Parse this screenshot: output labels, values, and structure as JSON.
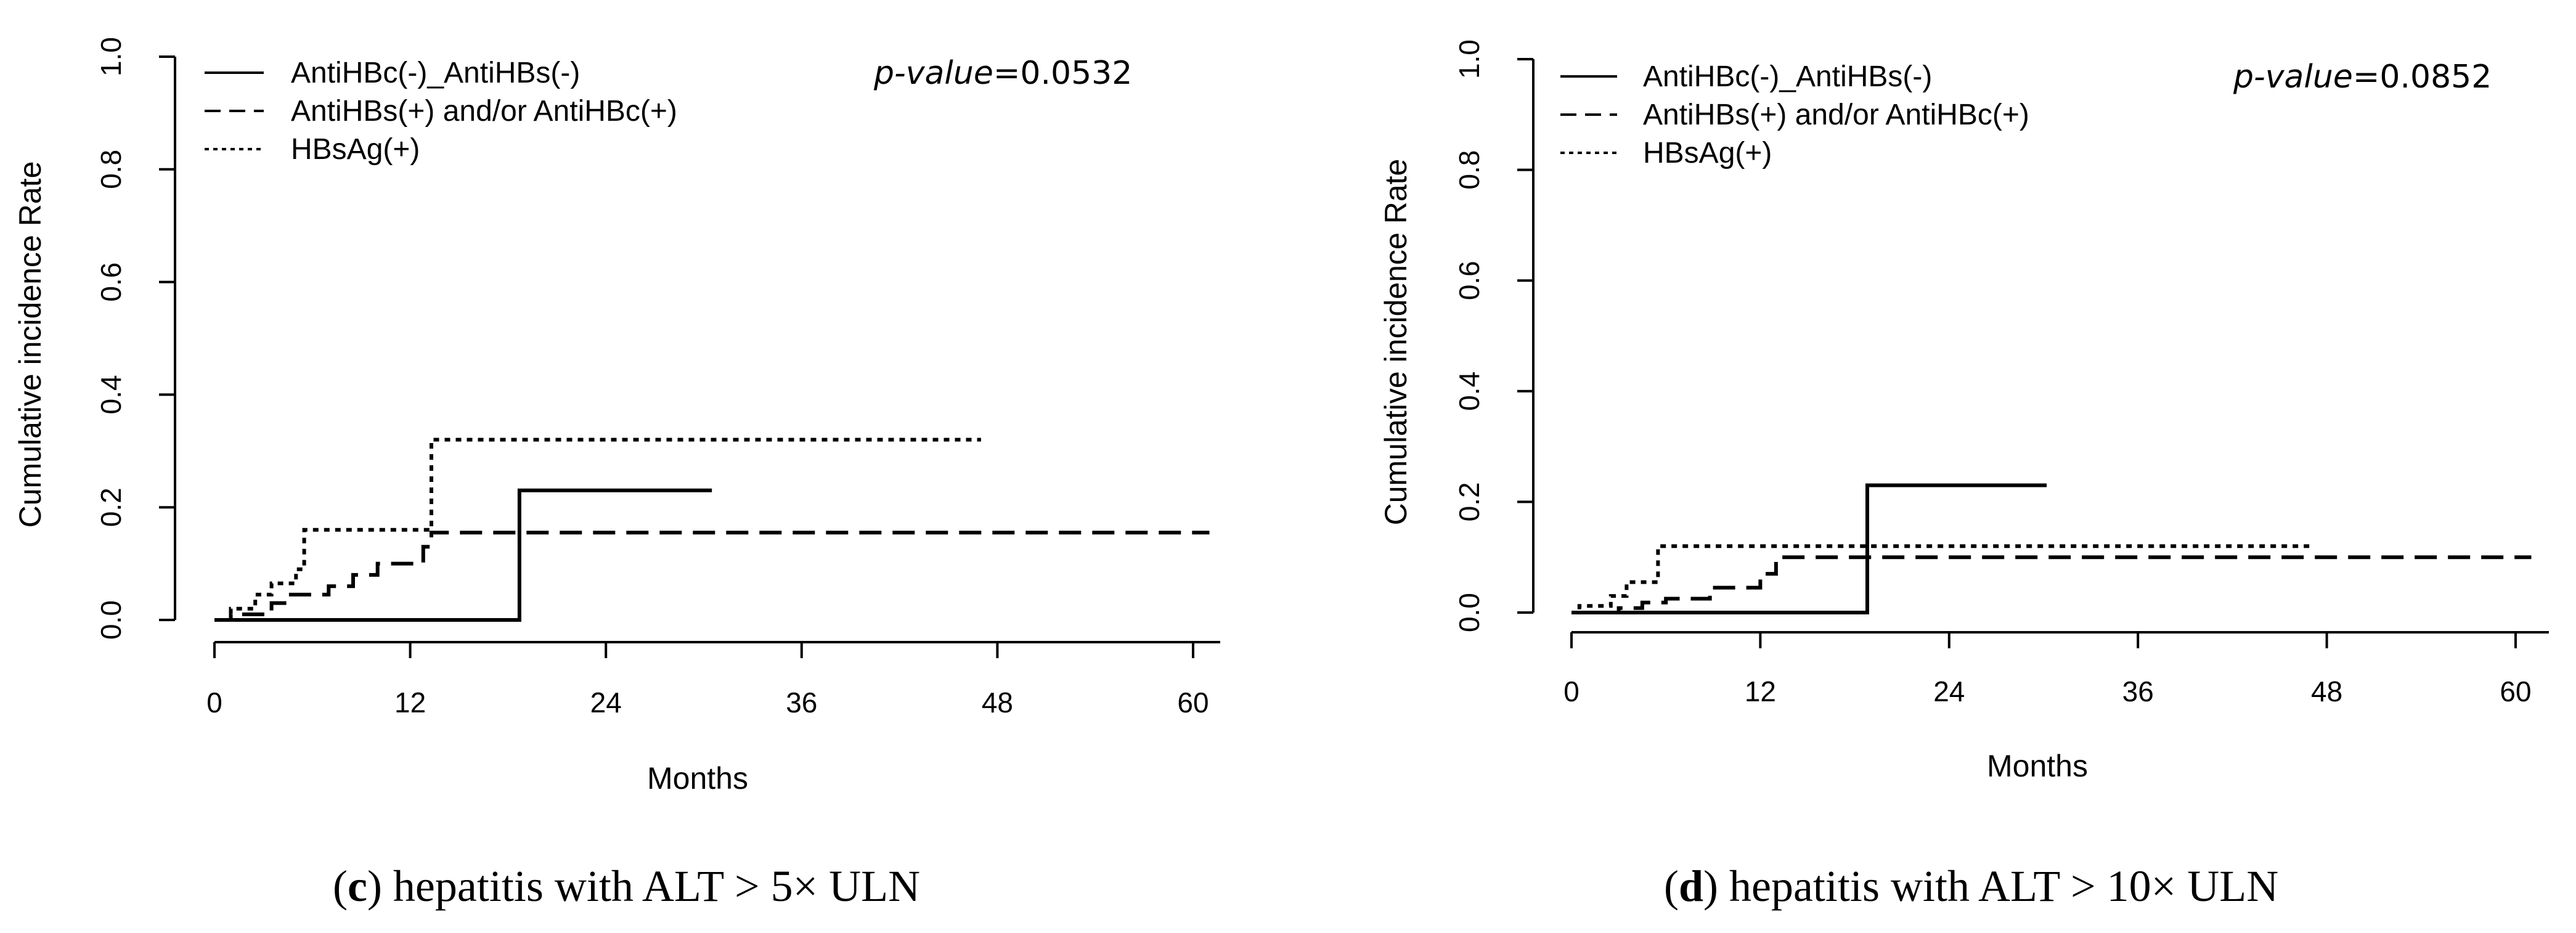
{
  "chart_data": [
    {
      "type": "line",
      "step": true,
      "title": "",
      "xlabel": "Months",
      "ylabel": "Cumulative incidence Rate",
      "xlim": [
        0,
        60
      ],
      "ylim": [
        0,
        1.0
      ],
      "xticks": [
        "0",
        "12",
        "24",
        "36",
        "48",
        "60"
      ],
      "yticks": [
        "0.0",
        "0.2",
        "0.4",
        "0.6",
        "0.8",
        "1.0"
      ],
      "grid": false,
      "legend": "top-left",
      "annotation": {
        "label": "p-value",
        "value": "=0.0532"
      },
      "caption": {
        "letter": "c",
        "text": ") hepatitis with ALT > 5× ULN"
      },
      "series": [
        {
          "name": "AntiHBc(-)_AntiHBs(-)",
          "style": "solid",
          "points": [
            [
              0,
              0
            ],
            [
              18.7,
              0
            ],
            [
              18.7,
              0.23
            ],
            [
              30.5,
              0.23
            ]
          ]
        },
        {
          "name": "AntiHBs(+) and/or AntiHBc(+)",
          "style": "dashed",
          "points": [
            [
              0,
              0
            ],
            [
              1,
              0
            ],
            [
              1,
              0.01
            ],
            [
              3.5,
              0.01
            ],
            [
              3.5,
              0.03
            ],
            [
              4.5,
              0.03
            ],
            [
              4.5,
              0.045
            ],
            [
              7,
              0.045
            ],
            [
              7,
              0.06
            ],
            [
              8.5,
              0.06
            ],
            [
              8.5,
              0.08
            ],
            [
              10,
              0.08
            ],
            [
              10,
              0.1
            ],
            [
              12.8,
              0.1
            ],
            [
              12.8,
              0.13
            ],
            [
              13.3,
              0.13
            ],
            [
              13.3,
              0.155
            ],
            [
              61,
              0.155
            ]
          ]
        },
        {
          "name": "HBsAg(+)",
          "style": "dotted",
          "points": [
            [
              0,
              0
            ],
            [
              1,
              0
            ],
            [
              1,
              0.02
            ],
            [
              2.5,
              0.02
            ],
            [
              2.5,
              0.045
            ],
            [
              3.5,
              0.045
            ],
            [
              3.5,
              0.065
            ],
            [
              5,
              0.065
            ],
            [
              5,
              0.09
            ],
            [
              5.5,
              0.09
            ],
            [
              5.5,
              0.16
            ],
            [
              13.3,
              0.16
            ],
            [
              13.3,
              0.32
            ],
            [
              47,
              0.32
            ]
          ]
        }
      ]
    },
    {
      "type": "line",
      "step": true,
      "title": "",
      "xlabel": "Months",
      "ylabel": "Cumulative incidence Rate",
      "xlim": [
        0,
        60
      ],
      "ylim": [
        0,
        1.0
      ],
      "xticks": [
        "0",
        "12",
        "24",
        "36",
        "48",
        "60"
      ],
      "yticks": [
        "0.0",
        "0.2",
        "0.4",
        "0.6",
        "0.8",
        "1.0"
      ],
      "grid": false,
      "legend": "top-left",
      "annotation": {
        "label": "p-value",
        "value": "=0.0852"
      },
      "caption": {
        "letter": "d",
        "text": ") hepatitis with ALT > 10× ULN"
      },
      "series": [
        {
          "name": "AntiHBc(-)_AntiHBs(-)",
          "style": "solid",
          "points": [
            [
              0,
              0
            ],
            [
              18.8,
              0
            ],
            [
              18.8,
              0.23
            ],
            [
              30.2,
              0.23
            ]
          ]
        },
        {
          "name": "AntiHBs(+) and/or AntiHBc(+)",
          "style": "dashed",
          "points": [
            [
              0,
              0
            ],
            [
              3,
              0
            ],
            [
              3,
              0.008
            ],
            [
              4.5,
              0.008
            ],
            [
              4.5,
              0.018
            ],
            [
              6,
              0.018
            ],
            [
              6,
              0.025
            ],
            [
              8.8,
              0.025
            ],
            [
              8.8,
              0.045
            ],
            [
              12,
              0.045
            ],
            [
              12,
              0.07
            ],
            [
              13,
              0.07
            ],
            [
              13,
              0.1
            ],
            [
              61,
              0.1
            ]
          ]
        },
        {
          "name": "HBsAg(+)",
          "style": "dotted",
          "points": [
            [
              0,
              0
            ],
            [
              0.5,
              0
            ],
            [
              0.5,
              0.012
            ],
            [
              2.5,
              0.012
            ],
            [
              2.5,
              0.03
            ],
            [
              3.5,
              0.03
            ],
            [
              3.5,
              0.055
            ],
            [
              5.5,
              0.055
            ],
            [
              5.5,
              0.12
            ],
            [
              47,
              0.12
            ]
          ]
        }
      ]
    }
  ]
}
